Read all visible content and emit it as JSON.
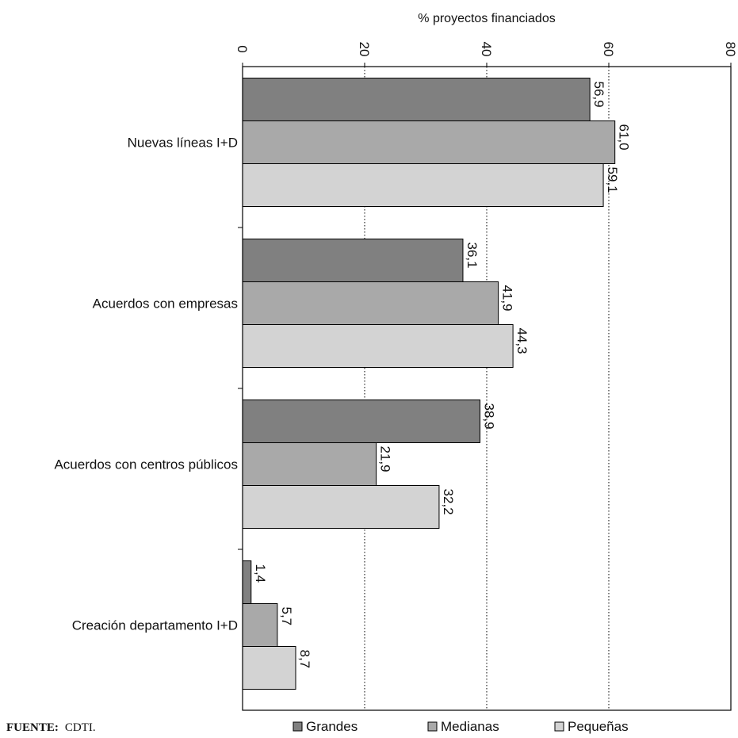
{
  "chart_data": {
    "type": "bar",
    "orientation": "horizontal",
    "title": "",
    "xlabel": "% proyectos financiados",
    "ylabel": "",
    "xlim": [
      0,
      80
    ],
    "xticks": [
      0,
      20,
      40,
      60,
      80
    ],
    "tick_labels": [
      "0",
      "20",
      "40",
      "60",
      "80"
    ],
    "grid": "vertical dotted gridlines",
    "categories": [
      "Nuevas líneas I+D",
      "Acuerdos con empresas",
      "Acuerdos con centros públicos",
      "Creación departamento I+D"
    ],
    "series": [
      {
        "name": "Grandes",
        "color": "#808080",
        "values": [
          56.9,
          36.1,
          38.9,
          1.4
        ],
        "labels": [
          "56,9",
          "36,1",
          "38,9",
          "1,4"
        ]
      },
      {
        "name": "Medianas",
        "color": "#a9a9a9",
        "values": [
          61.0,
          41.9,
          21.9,
          5.7
        ],
        "labels": [
          "61,0",
          "41,9",
          "21,9",
          "5,7"
        ]
      },
      {
        "name": "Pequeñas",
        "color": "#d3d3d3",
        "values": [
          59.1,
          44.3,
          32.2,
          8.7
        ],
        "labels": [
          "59,1",
          "44,3",
          "32,2",
          "8,7"
        ]
      }
    ],
    "legend_position": "bottom"
  },
  "source": {
    "label": "FUENTE:",
    "text": "CDTI."
  }
}
